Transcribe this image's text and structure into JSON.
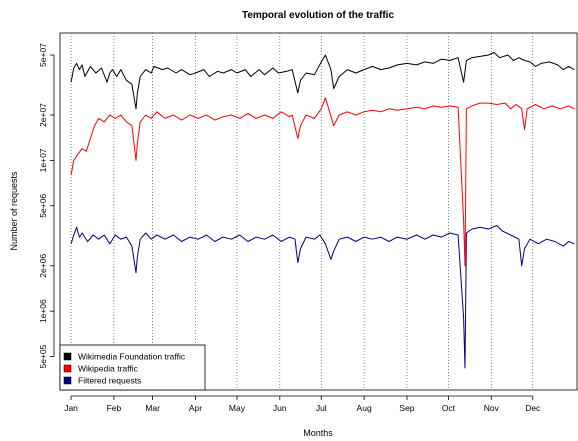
{
  "chart_data": {
    "type": "line",
    "title": "Temporal evolution of the traffic",
    "xlabel": "Months",
    "ylabel": "Number of requests",
    "y_scale": "log",
    "ylim": [
      300000,
      70000000
    ],
    "x_range_days": [
      -8,
      366
    ],
    "grid": "vertical dotted lines at month starts",
    "legend_position": "bottom-left",
    "x_ticks": [
      {
        "label": "Jan",
        "day": 0
      },
      {
        "label": "Feb",
        "day": 31
      },
      {
        "label": "Mar",
        "day": 59
      },
      {
        "label": "Apr",
        "day": 90
      },
      {
        "label": "May",
        "day": 120
      },
      {
        "label": "Jun",
        "day": 151
      },
      {
        "label": "Jul",
        "day": 181
      },
      {
        "label": "Aug",
        "day": 212
      },
      {
        "label": "Sep",
        "day": 243
      },
      {
        "label": "Oct",
        "day": 273
      },
      {
        "label": "Nov",
        "day": 304
      },
      {
        "label": "Dec",
        "day": 334
      }
    ],
    "y_ticks": [
      {
        "label": "5e+05",
        "value": 500000
      },
      {
        "label": "1e+06",
        "value": 1000000
      },
      {
        "label": "2e+06",
        "value": 2000000
      },
      {
        "label": "5e+06",
        "value": 5000000
      },
      {
        "label": "1e+07",
        "value": 10000000
      },
      {
        "label": "2e+07",
        "value": 20000000
      },
      {
        "label": "5e+07",
        "value": 50000000
      }
    ],
    "series": [
      {
        "name": "Wikimedia Foundation traffic",
        "color": "#000000",
        "points": [
          [
            0,
            33000000
          ],
          [
            2,
            41000000
          ],
          [
            4,
            44000000
          ],
          [
            6,
            40000000
          ],
          [
            8,
            43000000
          ],
          [
            10,
            36000000
          ],
          [
            14,
            42000000
          ],
          [
            18,
            38000000
          ],
          [
            22,
            41000000
          ],
          [
            26,
            33000000
          ],
          [
            28,
            38000000
          ],
          [
            30,
            40000000
          ],
          [
            33,
            36000000
          ],
          [
            36,
            40000000
          ],
          [
            40,
            34000000
          ],
          [
            44,
            32000000
          ],
          [
            47,
            22000000
          ],
          [
            48,
            28000000
          ],
          [
            50,
            36000000
          ],
          [
            54,
            40000000
          ],
          [
            58,
            38000000
          ],
          [
            60,
            42000000
          ],
          [
            66,
            40000000
          ],
          [
            70,
            41000000
          ],
          [
            76,
            38000000
          ],
          [
            80,
            40000000
          ],
          [
            86,
            37000000
          ],
          [
            90,
            38000000
          ],
          [
            96,
            40000000
          ],
          [
            100,
            36000000
          ],
          [
            106,
            39000000
          ],
          [
            110,
            38000000
          ],
          [
            116,
            40000000
          ],
          [
            120,
            38000000
          ],
          [
            126,
            40000000
          ],
          [
            130,
            36000000
          ],
          [
            136,
            40000000
          ],
          [
            140,
            37000000
          ],
          [
            146,
            41000000
          ],
          [
            150,
            38000000
          ],
          [
            156,
            39000000
          ],
          [
            160,
            40000000
          ],
          [
            164,
            28000000
          ],
          [
            166,
            34000000
          ],
          [
            170,
            38000000
          ],
          [
            176,
            37000000
          ],
          [
            181,
            45000000
          ],
          [
            184,
            50000000
          ],
          [
            188,
            40000000
          ],
          [
            190,
            30000000
          ],
          [
            194,
            36000000
          ],
          [
            200,
            40000000
          ],
          [
            206,
            38000000
          ],
          [
            212,
            40000000
          ],
          [
            218,
            42000000
          ],
          [
            224,
            40000000
          ],
          [
            230,
            41000000
          ],
          [
            236,
            43000000
          ],
          [
            243,
            44000000
          ],
          [
            250,
            43000000
          ],
          [
            256,
            45000000
          ],
          [
            262,
            44000000
          ],
          [
            268,
            47000000
          ],
          [
            274,
            46000000
          ],
          [
            280,
            48000000
          ],
          [
            284,
            33000000
          ],
          [
            286,
            46000000
          ],
          [
            290,
            48000000
          ],
          [
            296,
            49000000
          ],
          [
            302,
            50000000
          ],
          [
            306,
            52000000
          ],
          [
            310,
            48000000
          ],
          [
            316,
            50000000
          ],
          [
            320,
            46000000
          ],
          [
            324,
            48000000
          ],
          [
            328,
            46000000
          ],
          [
            332,
            45000000
          ],
          [
            336,
            42000000
          ],
          [
            340,
            44000000
          ],
          [
            346,
            45000000
          ],
          [
            352,
            43000000
          ],
          [
            356,
            40000000
          ],
          [
            360,
            42000000
          ],
          [
            364,
            40000000
          ]
        ]
      },
      {
        "name": "Wikipedia traffic",
        "color": "#ff0000",
        "points": [
          [
            0,
            8000000
          ],
          [
            2,
            10000000
          ],
          [
            5,
            11000000
          ],
          [
            8,
            12000000
          ],
          [
            11,
            11500000
          ],
          [
            14,
            14000000
          ],
          [
            17,
            17000000
          ],
          [
            20,
            19000000
          ],
          [
            24,
            18000000
          ],
          [
            28,
            20000000
          ],
          [
            32,
            19000000
          ],
          [
            36,
            20000000
          ],
          [
            40,
            18000000
          ],
          [
            44,
            17000000
          ],
          [
            47,
            10000000
          ],
          [
            48,
            13000000
          ],
          [
            50,
            18000000
          ],
          [
            54,
            20000000
          ],
          [
            58,
            19000000
          ],
          [
            62,
            21000000
          ],
          [
            68,
            19000000
          ],
          [
            74,
            20000000
          ],
          [
            80,
            18500000
          ],
          [
            86,
            20000000
          ],
          [
            92,
            19000000
          ],
          [
            98,
            20000000
          ],
          [
            104,
            18500000
          ],
          [
            110,
            19500000
          ],
          [
            116,
            20000000
          ],
          [
            122,
            19000000
          ],
          [
            128,
            20500000
          ],
          [
            134,
            19000000
          ],
          [
            140,
            20000000
          ],
          [
            146,
            19000000
          ],
          [
            152,
            21000000
          ],
          [
            158,
            19500000
          ],
          [
            160,
            20000000
          ],
          [
            164,
            14000000
          ],
          [
            166,
            17000000
          ],
          [
            170,
            20000000
          ],
          [
            176,
            19000000
          ],
          [
            181,
            22000000
          ],
          [
            184,
            26000000
          ],
          [
            187,
            21000000
          ],
          [
            190,
            17000000
          ],
          [
            194,
            20000000
          ],
          [
            200,
            21000000
          ],
          [
            206,
            20000000
          ],
          [
            212,
            21000000
          ],
          [
            218,
            21500000
          ],
          [
            224,
            21000000
          ],
          [
            230,
            22000000
          ],
          [
            236,
            21500000
          ],
          [
            243,
            22000000
          ],
          [
            250,
            22500000
          ],
          [
            256,
            22000000
          ],
          [
            262,
            23000000
          ],
          [
            268,
            22500000
          ],
          [
            274,
            23000000
          ],
          [
            280,
            22500000
          ],
          [
            284,
            4000000
          ],
          [
            285,
            2000000
          ],
          [
            286,
            22000000
          ],
          [
            290,
            23000000
          ],
          [
            296,
            24000000
          ],
          [
            302,
            24000000
          ],
          [
            308,
            23500000
          ],
          [
            314,
            24000000
          ],
          [
            318,
            22000000
          ],
          [
            322,
            23500000
          ],
          [
            326,
            22000000
          ],
          [
            328,
            16000000
          ],
          [
            330,
            22000000
          ],
          [
            336,
            23500000
          ],
          [
            342,
            22000000
          ],
          [
            348,
            23000000
          ],
          [
            354,
            22000000
          ],
          [
            360,
            23000000
          ],
          [
            364,
            22000000
          ]
        ]
      },
      {
        "name": "Filtered requests",
        "color": "#000080",
        "points": [
          [
            0,
            2800000
          ],
          [
            2,
            3200000
          ],
          [
            4,
            3600000
          ],
          [
            6,
            3100000
          ],
          [
            8,
            3300000
          ],
          [
            12,
            2900000
          ],
          [
            16,
            3200000
          ],
          [
            20,
            3000000
          ],
          [
            24,
            3200000
          ],
          [
            28,
            2800000
          ],
          [
            32,
            3200000
          ],
          [
            36,
            3000000
          ],
          [
            40,
            3100000
          ],
          [
            44,
            2700000
          ],
          [
            47,
            1800000
          ],
          [
            48,
            2300000
          ],
          [
            50,
            3000000
          ],
          [
            54,
            3300000
          ],
          [
            58,
            3000000
          ],
          [
            62,
            3200000
          ],
          [
            68,
            3000000
          ],
          [
            74,
            3200000
          ],
          [
            80,
            2900000
          ],
          [
            86,
            3100000
          ],
          [
            92,
            3000000
          ],
          [
            98,
            3200000
          ],
          [
            104,
            2900000
          ],
          [
            110,
            3100000
          ],
          [
            116,
            3000000
          ],
          [
            122,
            3200000
          ],
          [
            128,
            2900000
          ],
          [
            134,
            3100000
          ],
          [
            140,
            3000000
          ],
          [
            146,
            3200000
          ],
          [
            152,
            2900000
          ],
          [
            158,
            3100000
          ],
          [
            162,
            3000000
          ],
          [
            164,
            2100000
          ],
          [
            166,
            2600000
          ],
          [
            170,
            3100000
          ],
          [
            176,
            3000000
          ],
          [
            180,
            3200000
          ],
          [
            184,
            2800000
          ],
          [
            188,
            2200000
          ],
          [
            190,
            2500000
          ],
          [
            194,
            3000000
          ],
          [
            200,
            3100000
          ],
          [
            206,
            2900000
          ],
          [
            212,
            3100000
          ],
          [
            218,
            3000000
          ],
          [
            224,
            3100000
          ],
          [
            230,
            2900000
          ],
          [
            236,
            3100000
          ],
          [
            243,
            3000000
          ],
          [
            250,
            3200000
          ],
          [
            256,
            3000000
          ],
          [
            262,
            3200000
          ],
          [
            268,
            3100000
          ],
          [
            274,
            3300000
          ],
          [
            280,
            3200000
          ],
          [
            284,
            900000
          ],
          [
            285,
            420000
          ],
          [
            286,
            3300000
          ],
          [
            290,
            3500000
          ],
          [
            296,
            3600000
          ],
          [
            302,
            3500000
          ],
          [
            308,
            3700000
          ],
          [
            312,
            3400000
          ],
          [
            318,
            3200000
          ],
          [
            324,
            3000000
          ],
          [
            326,
            2000000
          ],
          [
            328,
            2600000
          ],
          [
            332,
            3000000
          ],
          [
            338,
            2800000
          ],
          [
            344,
            3000000
          ],
          [
            350,
            2900000
          ],
          [
            356,
            2700000
          ],
          [
            360,
            2900000
          ],
          [
            364,
            2800000
          ]
        ]
      }
    ]
  }
}
